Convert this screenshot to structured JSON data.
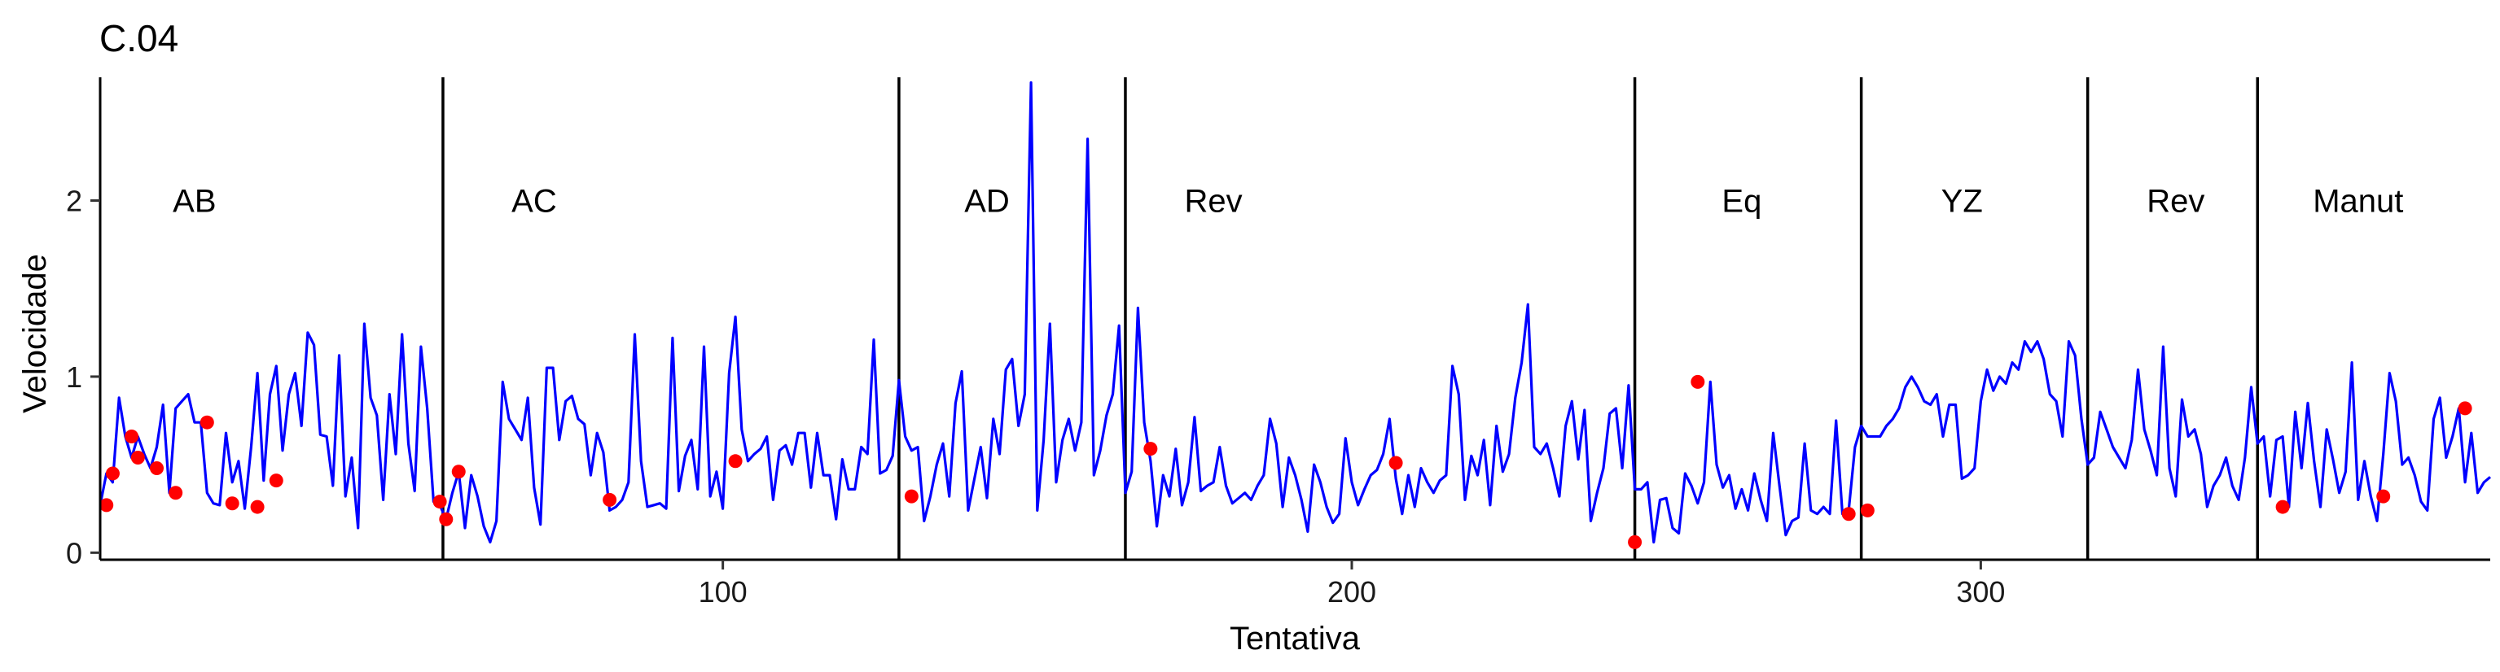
{
  "chart_data": {
    "type": "line",
    "title": "C.04",
    "xlabel": "Tentativa",
    "ylabel": "Velocidade",
    "xlim": [
      1,
      381
    ],
    "ylim": [
      -0.04,
      2.7
    ],
    "x_ticks": [
      100,
      200,
      300
    ],
    "y_ticks": [
      0,
      1,
      2
    ],
    "grid": false,
    "legend": "none",
    "colors": {
      "line": "#0000ff",
      "points": "#ff0000",
      "phase_lines": "#000000"
    },
    "phase_boundaries": [
      55.5,
      128,
      164,
      245,
      281,
      317,
      344
    ],
    "phases": [
      {
        "label": "AB",
        "x": 16
      },
      {
        "label": "AC",
        "x": 70
      },
      {
        "label": "AD",
        "x": 142
      },
      {
        "label": "Rev",
        "x": 178
      },
      {
        "label": "Eq",
        "x": 262
      },
      {
        "label": "YZ",
        "x": 297
      },
      {
        "label": "Rev",
        "x": 331
      },
      {
        "label": "Manut",
        "x": 360
      }
    ],
    "series": [
      {
        "y": [
          0.27,
          0.45,
          0.4,
          0.88,
          0.66,
          0.54,
          0.66,
          0.56,
          0.48,
          0.6,
          0.84,
          0.34,
          0.82,
          0.86,
          0.9,
          0.74,
          0.74,
          0.34,
          0.28,
          0.27,
          0.68,
          0.4,
          0.52,
          0.25,
          0.6,
          1.02,
          0.41,
          0.9,
          1.06,
          0.58,
          0.9,
          1.02,
          0.72,
          1.25,
          1.18,
          0.67,
          0.66,
          0.38,
          1.12,
          0.32,
          0.54,
          0.14,
          1.3,
          0.88,
          0.78,
          0.3,
          0.9,
          0.56,
          1.24,
          0.62,
          0.35,
          1.17,
          0.82,
          0.29,
          0.27,
          0.19,
          0.34,
          0.46,
          0.14,
          0.44,
          0.32,
          0.15,
          0.06,
          0.18,
          0.97,
          0.76,
          0.7,
          0.64,
          0.88,
          0.37,
          0.16,
          1.05,
          1.05,
          0.64,
          0.86,
          0.89,
          0.76,
          0.73,
          0.44,
          0.68,
          0.57,
          0.24,
          0.26,
          0.3,
          0.4,
          1.24,
          0.52,
          0.26,
          0.27,
          0.28,
          0.25,
          1.22,
          0.35,
          0.55,
          0.64,
          0.36,
          1.17,
          0.32,
          0.46,
          0.25,
          1.02,
          1.34,
          0.7,
          0.52,
          0.56,
          0.59,
          0.66,
          0.3,
          0.58,
          0.61,
          0.5,
          0.68,
          0.68,
          0.37,
          0.68,
          0.44,
          0.44,
          0.19,
          0.53,
          0.36,
          0.36,
          0.6,
          0.56,
          1.21,
          0.45,
          0.47,
          0.55,
          0.98,
          0.66,
          0.58,
          0.6,
          0.18,
          0.32,
          0.5,
          0.62,
          0.32,
          0.85,
          1.03,
          0.24,
          0.42,
          0.6,
          0.31,
          0.76,
          0.56,
          1.04,
          1.1,
          0.72,
          0.9,
          2.67,
          0.24,
          0.64,
          1.3,
          0.4,
          0.64,
          0.76,
          0.58,
          0.74,
          2.35,
          0.44,
          0.58,
          0.78,
          0.9,
          1.29,
          0.34,
          0.46,
          1.39,
          0.74,
          0.52,
          0.15,
          0.44,
          0.32,
          0.59,
          0.27,
          0.4,
          0.77,
          0.35,
          0.38,
          0.4,
          0.6,
          0.38,
          0.28,
          0.31,
          0.34,
          0.3,
          0.38,
          0.44,
          0.76,
          0.62,
          0.26,
          0.54,
          0.44,
          0.3,
          0.12,
          0.5,
          0.4,
          0.26,
          0.17,
          0.22,
          0.65,
          0.4,
          0.27,
          0.36,
          0.44,
          0.47,
          0.56,
          0.76,
          0.42,
          0.22,
          0.44,
          0.26,
          0.48,
          0.4,
          0.34,
          0.41,
          0.44,
          1.06,
          0.9,
          0.3,
          0.55,
          0.44,
          0.64,
          0.27,
          0.72,
          0.46,
          0.56,
          0.88,
          1.08,
          1.41,
          0.6,
          0.56,
          0.62,
          0.48,
          0.32,
          0.72,
          0.86,
          0.53,
          0.81,
          0.18,
          0.34,
          0.48,
          0.79,
          0.82,
          0.48,
          0.95,
          0.36,
          0.36,
          0.4,
          0.06,
          0.3,
          0.31,
          0.14,
          0.11,
          0.45,
          0.38,
          0.28,
          0.4,
          0.97,
          0.5,
          0.37,
          0.44,
          0.25,
          0.36,
          0.24,
          0.45,
          0.3,
          0.18,
          0.68,
          0.38,
          0.1,
          0.18,
          0.2,
          0.62,
          0.24,
          0.22,
          0.26,
          0.22,
          0.75,
          0.22,
          0.24,
          0.6,
          0.72,
          0.66,
          0.66,
          0.66,
          0.72,
          0.76,
          0.82,
          0.94,
          1.0,
          0.94,
          0.86,
          0.84,
          0.9,
          0.66,
          0.84,
          0.84,
          0.42,
          0.44,
          0.48,
          0.86,
          1.04,
          0.92,
          1.0,
          0.96,
          1.08,
          1.04,
          1.2,
          1.14,
          1.2,
          1.1,
          0.9,
          0.86,
          0.66,
          1.2,
          1.12,
          0.76,
          0.5,
          0.54,
          0.8,
          0.7,
          0.6,
          0.54,
          0.48,
          0.64,
          1.04,
          0.7,
          0.58,
          0.44,
          1.17,
          0.48,
          0.32,
          0.87,
          0.66,
          0.7,
          0.56,
          0.26,
          0.38,
          0.44,
          0.54,
          0.38,
          0.3,
          0.54,
          0.94,
          0.62,
          0.66,
          0.32,
          0.64,
          0.66,
          0.26,
          0.8,
          0.48,
          0.85,
          0.52,
          0.26,
          0.7,
          0.53,
          0.34,
          0.46,
          1.08,
          0.3,
          0.52,
          0.32,
          0.18,
          0.56,
          1.02,
          0.86,
          0.5,
          0.54,
          0.44,
          0.29,
          0.24,
          0.76,
          0.88,
          0.54,
          0.66,
          0.82,
          0.4,
          0.68,
          0.34,
          0.4,
          0.43
        ]
      }
    ],
    "markers": [
      {
        "x": 2,
        "y": 0.27
      },
      {
        "x": 3,
        "y": 0.45
      },
      {
        "x": 6,
        "y": 0.66
      },
      {
        "x": 7,
        "y": 0.54
      },
      {
        "x": 10,
        "y": 0.48
      },
      {
        "x": 13,
        "y": 0.34
      },
      {
        "x": 18,
        "y": 0.74
      },
      {
        "x": 22,
        "y": 0.28
      },
      {
        "x": 26,
        "y": 0.26
      },
      {
        "x": 29,
        "y": 0.41
      },
      {
        "x": 55,
        "y": 0.29
      },
      {
        "x": 56,
        "y": 0.19
      },
      {
        "x": 58,
        "y": 0.46
      },
      {
        "x": 82,
        "y": 0.3
      },
      {
        "x": 102,
        "y": 0.52
      },
      {
        "x": 130,
        "y": 0.32
      },
      {
        "x": 168,
        "y": 0.59
      },
      {
        "x": 207,
        "y": 0.51
      },
      {
        "x": 245,
        "y": 0.06
      },
      {
        "x": 255,
        "y": 0.97
      },
      {
        "x": 279,
        "y": 0.22
      },
      {
        "x": 282,
        "y": 0.24
      },
      {
        "x": 348,
        "y": 0.26
      },
      {
        "x": 364,
        "y": 0.32
      },
      {
        "x": 377,
        "y": 0.82
      }
    ]
  }
}
